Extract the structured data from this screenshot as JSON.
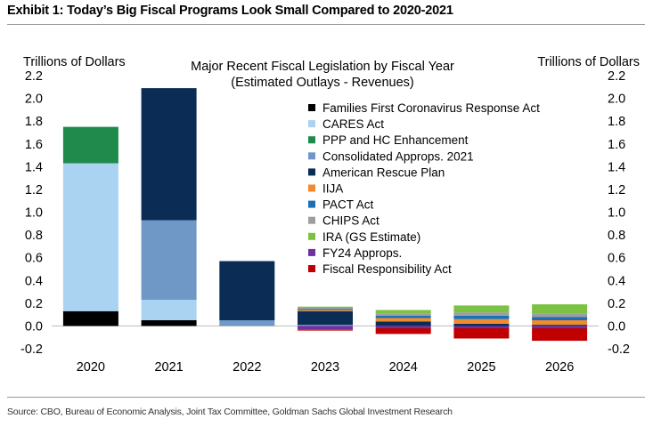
{
  "header": {
    "title": "Exhibit 1: Today’s Big Fiscal Programs Look Small Compared to 2020-2021"
  },
  "footer": {
    "source": "Source: CBO, Bureau of Economic Analysis, Joint Tax Committee, Goldman Sachs Global Investment Research"
  },
  "chart_data": {
    "type": "bar",
    "stacked": true,
    "title": "Major Recent Fiscal Legislation by Fiscal Year",
    "subtitle": "(Estimated Outlays - Revenues)",
    "ylabel_left": "Trillions of Dollars",
    "ylabel_right": "Trillions of Dollars",
    "ylim": [
      -0.2,
      2.2
    ],
    "yticks": [
      -0.2,
      0.0,
      0.2,
      0.4,
      0.6,
      0.8,
      1.0,
      1.2,
      1.4,
      1.6,
      1.8,
      2.0,
      2.2
    ],
    "categories": [
      "2020",
      "2021",
      "2022",
      "2023",
      "2024",
      "2025",
      "2026"
    ],
    "series": [
      {
        "name": "Families First Coronavirus Response Act",
        "color": "#000000",
        "values": [
          0.13,
          0.05,
          0.0,
          0.0,
          0.0,
          0.0,
          0.0
        ]
      },
      {
        "name": "CARES Act",
        "color": "#a9d3f0",
        "values": [
          1.3,
          0.18,
          0.0,
          0.0,
          0.0,
          0.0,
          0.0
        ]
      },
      {
        "name": "PPP and HC Enhancement",
        "color": "#1f8a4c",
        "values": [
          0.32,
          0.0,
          0.0,
          0.0,
          0.0,
          0.0,
          0.0
        ]
      },
      {
        "name": "Consolidated Approps. 2021",
        "color": "#6f98c6",
        "values": [
          0.0,
          0.7,
          0.05,
          0.01,
          0.0,
          0.0,
          0.0
        ]
      },
      {
        "name": "American Rescue Plan",
        "color": "#0b2d55",
        "values": [
          0.0,
          1.16,
          0.52,
          0.12,
          0.04,
          0.02,
          0.01
        ]
      },
      {
        "name": "IIJA",
        "color": "#f28a2e",
        "values": [
          0.0,
          0.0,
          0.0,
          0.01,
          0.03,
          0.04,
          0.04
        ]
      },
      {
        "name": "PACT Act",
        "color": "#1a6fb5",
        "values": [
          0.0,
          0.0,
          0.0,
          0.01,
          0.02,
          0.03,
          0.03
        ]
      },
      {
        "name": "CHIPS Act",
        "color": "#9e9e9e",
        "values": [
          0.0,
          0.0,
          0.0,
          0.01,
          0.02,
          0.03,
          0.03
        ]
      },
      {
        "name": "IRA (GS Estimate)",
        "color": "#7cc242",
        "values": [
          0.0,
          0.0,
          0.0,
          0.01,
          0.03,
          0.06,
          0.08
        ]
      },
      {
        "name": "FY24 Approps.",
        "color": "#7030a0",
        "values": [
          0.0,
          0.0,
          0.0,
          -0.03,
          -0.02,
          -0.02,
          -0.02
        ]
      },
      {
        "name": "Fiscal Responsibility Act",
        "color": "#c00000",
        "values": [
          0.0,
          0.0,
          0.0,
          -0.01,
          -0.05,
          -0.09,
          -0.11
        ]
      }
    ]
  }
}
